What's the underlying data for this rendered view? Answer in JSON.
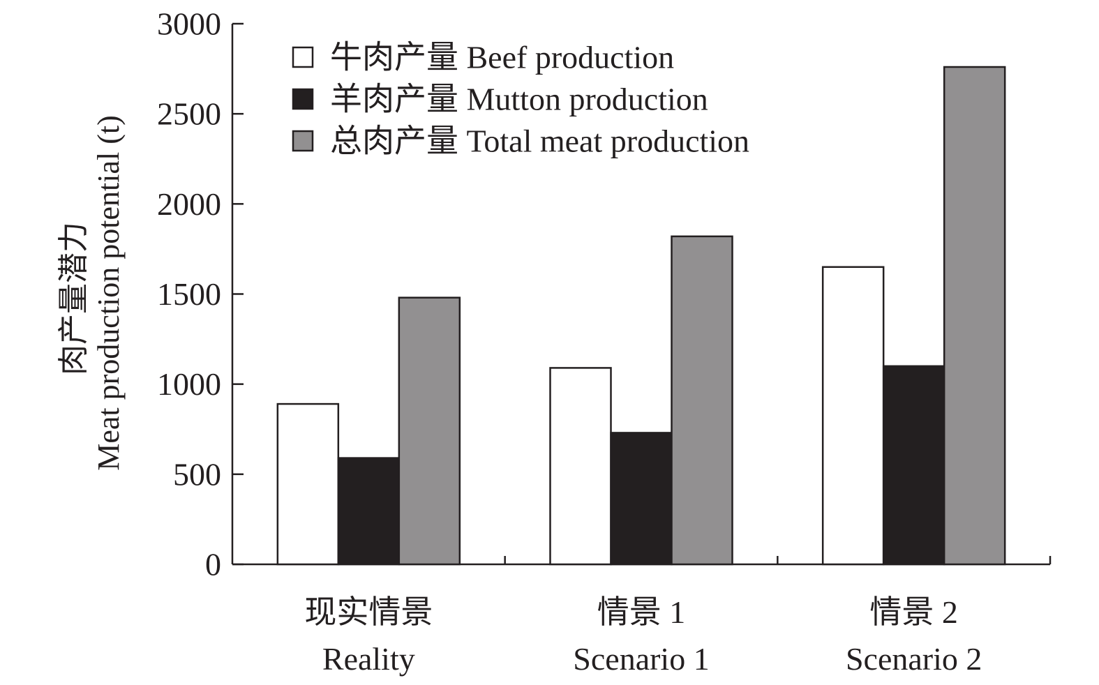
{
  "chart_data": {
    "type": "bar",
    "categories": [
      {
        "line1": "现实情景",
        "line2": "Reality"
      },
      {
        "line1": "情景 1",
        "line2": "Scenario 1"
      },
      {
        "line1": "情景 2",
        "line2": "Scenario 2"
      }
    ],
    "series": [
      {
        "name": "牛肉产量 Beef production",
        "color": "#ffffff",
        "values": [
          890,
          1090,
          1650
        ]
      },
      {
        "name": "羊肉产量 Mutton production",
        "color": "#231f20",
        "values": [
          590,
          730,
          1100
        ]
      },
      {
        "name": "总肉产量 Total meat production",
        "color": "#929091",
        "values": [
          1480,
          1820,
          2760
        ]
      }
    ],
    "ylabel_line1": "肉产量潜力",
    "ylabel_line2": "Meat production potential (t)",
    "ylim": [
      0,
      3000
    ],
    "yticks": [
      0,
      500,
      1000,
      1500,
      2000,
      2500,
      3000
    ],
    "grid": false,
    "legend_position": "top-left"
  }
}
